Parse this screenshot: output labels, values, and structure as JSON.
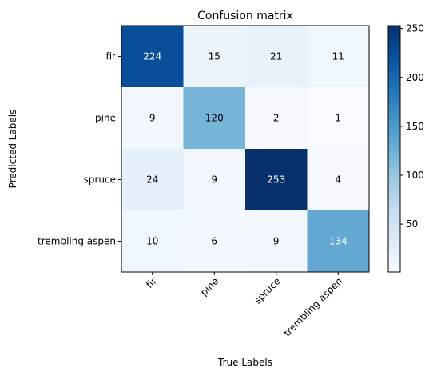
{
  "chart_data": {
    "type": "heatmap",
    "title": "Confusion matrix",
    "xlabel": "True Labels",
    "ylabel": "Predicted Labels",
    "x_categories": [
      "fir",
      "pine",
      "spruce",
      "trembling aspen"
    ],
    "y_categories": [
      "fir",
      "pine",
      "spruce",
      "trembling aspen"
    ],
    "values": [
      [
        224,
        15,
        21,
        11
      ],
      [
        9,
        120,
        2,
        1
      ],
      [
        24,
        9,
        253,
        4
      ],
      [
        10,
        6,
        9,
        134
      ]
    ],
    "colormap": "Blues",
    "value_range": [
      1,
      253
    ],
    "colorbar_ticks": [
      50,
      100,
      150,
      200,
      250
    ],
    "x_tick_rotation_deg": 45,
    "grid": false
  }
}
